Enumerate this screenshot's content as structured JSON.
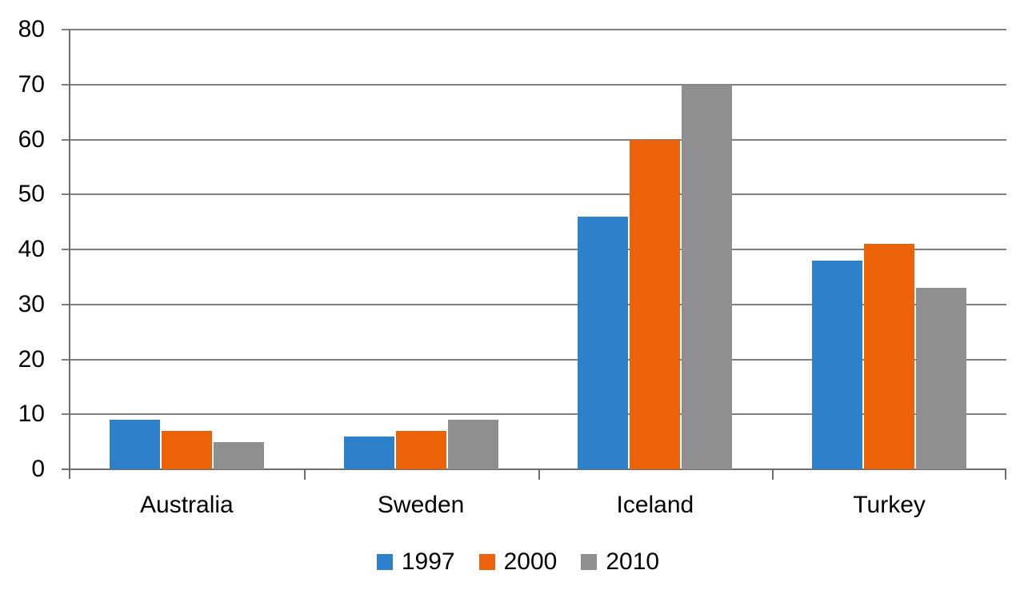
{
  "chart_data": {
    "type": "bar",
    "title": "",
    "xlabel": "",
    "ylabel": "",
    "categories": [
      "Australia",
      "Sweden",
      "Iceland",
      "Turkey"
    ],
    "series": [
      {
        "name": "1997",
        "color": "#2E80CA",
        "values": [
          9,
          6,
          46,
          38
        ]
      },
      {
        "name": "2000",
        "color": "#EB6209",
        "values": [
          7,
          7,
          60,
          41
        ]
      },
      {
        "name": "2010",
        "color": "#8F8F92",
        "values": [
          5,
          9,
          70,
          33
        ]
      }
    ],
    "ylim": [
      0,
      80
    ],
    "ytick_interval": 10,
    "yticks": [
      0,
      10,
      20,
      30,
      40,
      50,
      60,
      70,
      80
    ],
    "grid": true,
    "legend_position": "bottom"
  },
  "colors": {
    "background": "#FFFFFF",
    "gridline": "#7F7F7F",
    "axis": "#6E6E6E",
    "text": "#000000"
  }
}
